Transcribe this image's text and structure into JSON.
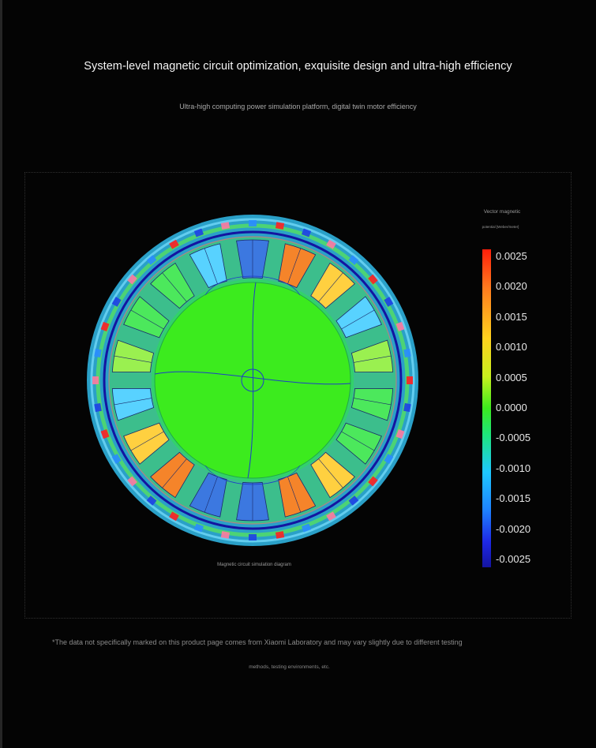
{
  "header": {
    "title": "System-level magnetic circuit optimization, exquisite design and ultra-high efficiency",
    "subtitle": "Ultra-high computing power simulation platform, digital twin motor efficiency"
  },
  "legend": {
    "title": "Vector magnetic",
    "unit": "potential [Weber/meter]",
    "ticks": [
      "0.0025",
      "0.0020",
      "0.0015",
      "0.0010",
      "0.0005",
      "0.0000",
      "-0.0005",
      "-0.0010",
      "-0.0015",
      "-0.0020",
      "-0.0025"
    ],
    "range": [
      -0.0025,
      0.0025
    ],
    "colors": [
      "#ff1e0a",
      "#ff7a1e",
      "#ffd21e",
      "#c8f01e",
      "#3cea1e",
      "#1ee678",
      "#1ec8ff",
      "#1e82ff",
      "#1e28e6",
      "#1414a0"
    ]
  },
  "diagram": {
    "caption": "Magnetic circuit simulation diagram",
    "slot_colors": [
      "#f5842a",
      "#3c78e0",
      "#ffd040",
      "#58d2ff",
      "#9af050",
      "#4ce85c"
    ],
    "rotor_color": "#3ceb1e",
    "line_color": "#1e3cc8"
  },
  "footer": {
    "note_line1": "*The data not specifically marked on this product page comes from Xiaomi Laboratory and may vary slightly due to different testing",
    "note_line2": "methods, testing environments, etc."
  }
}
